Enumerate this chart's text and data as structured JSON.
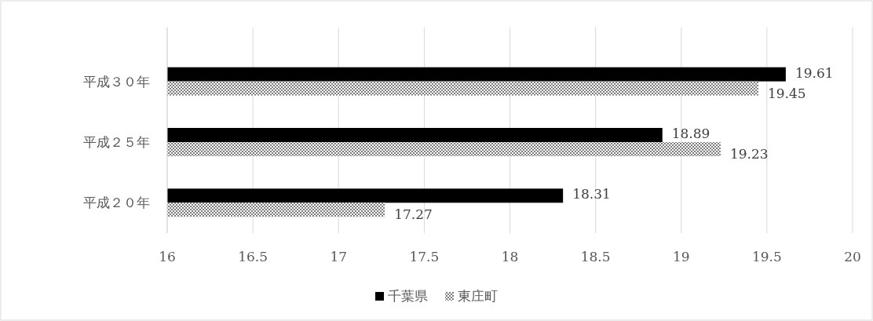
{
  "chart_data": {
    "type": "bar",
    "orientation": "horizontal",
    "categories": [
      "平成３０年",
      "平成２５年",
      "平成２０年"
    ],
    "series": [
      {
        "name": "千葉県",
        "color": "#000000",
        "values": [
          19.61,
          18.89,
          18.31
        ]
      },
      {
        "name": "東庄町",
        "color": "#404040",
        "values": [
          19.45,
          19.23,
          17.27
        ]
      }
    ],
    "xlim": [
      16,
      20
    ],
    "xticks": [
      16,
      16.5,
      17,
      17.5,
      18,
      18.5,
      19,
      19.5,
      20
    ],
    "grid": "x",
    "legend": "bottom",
    "data_labels": true
  }
}
